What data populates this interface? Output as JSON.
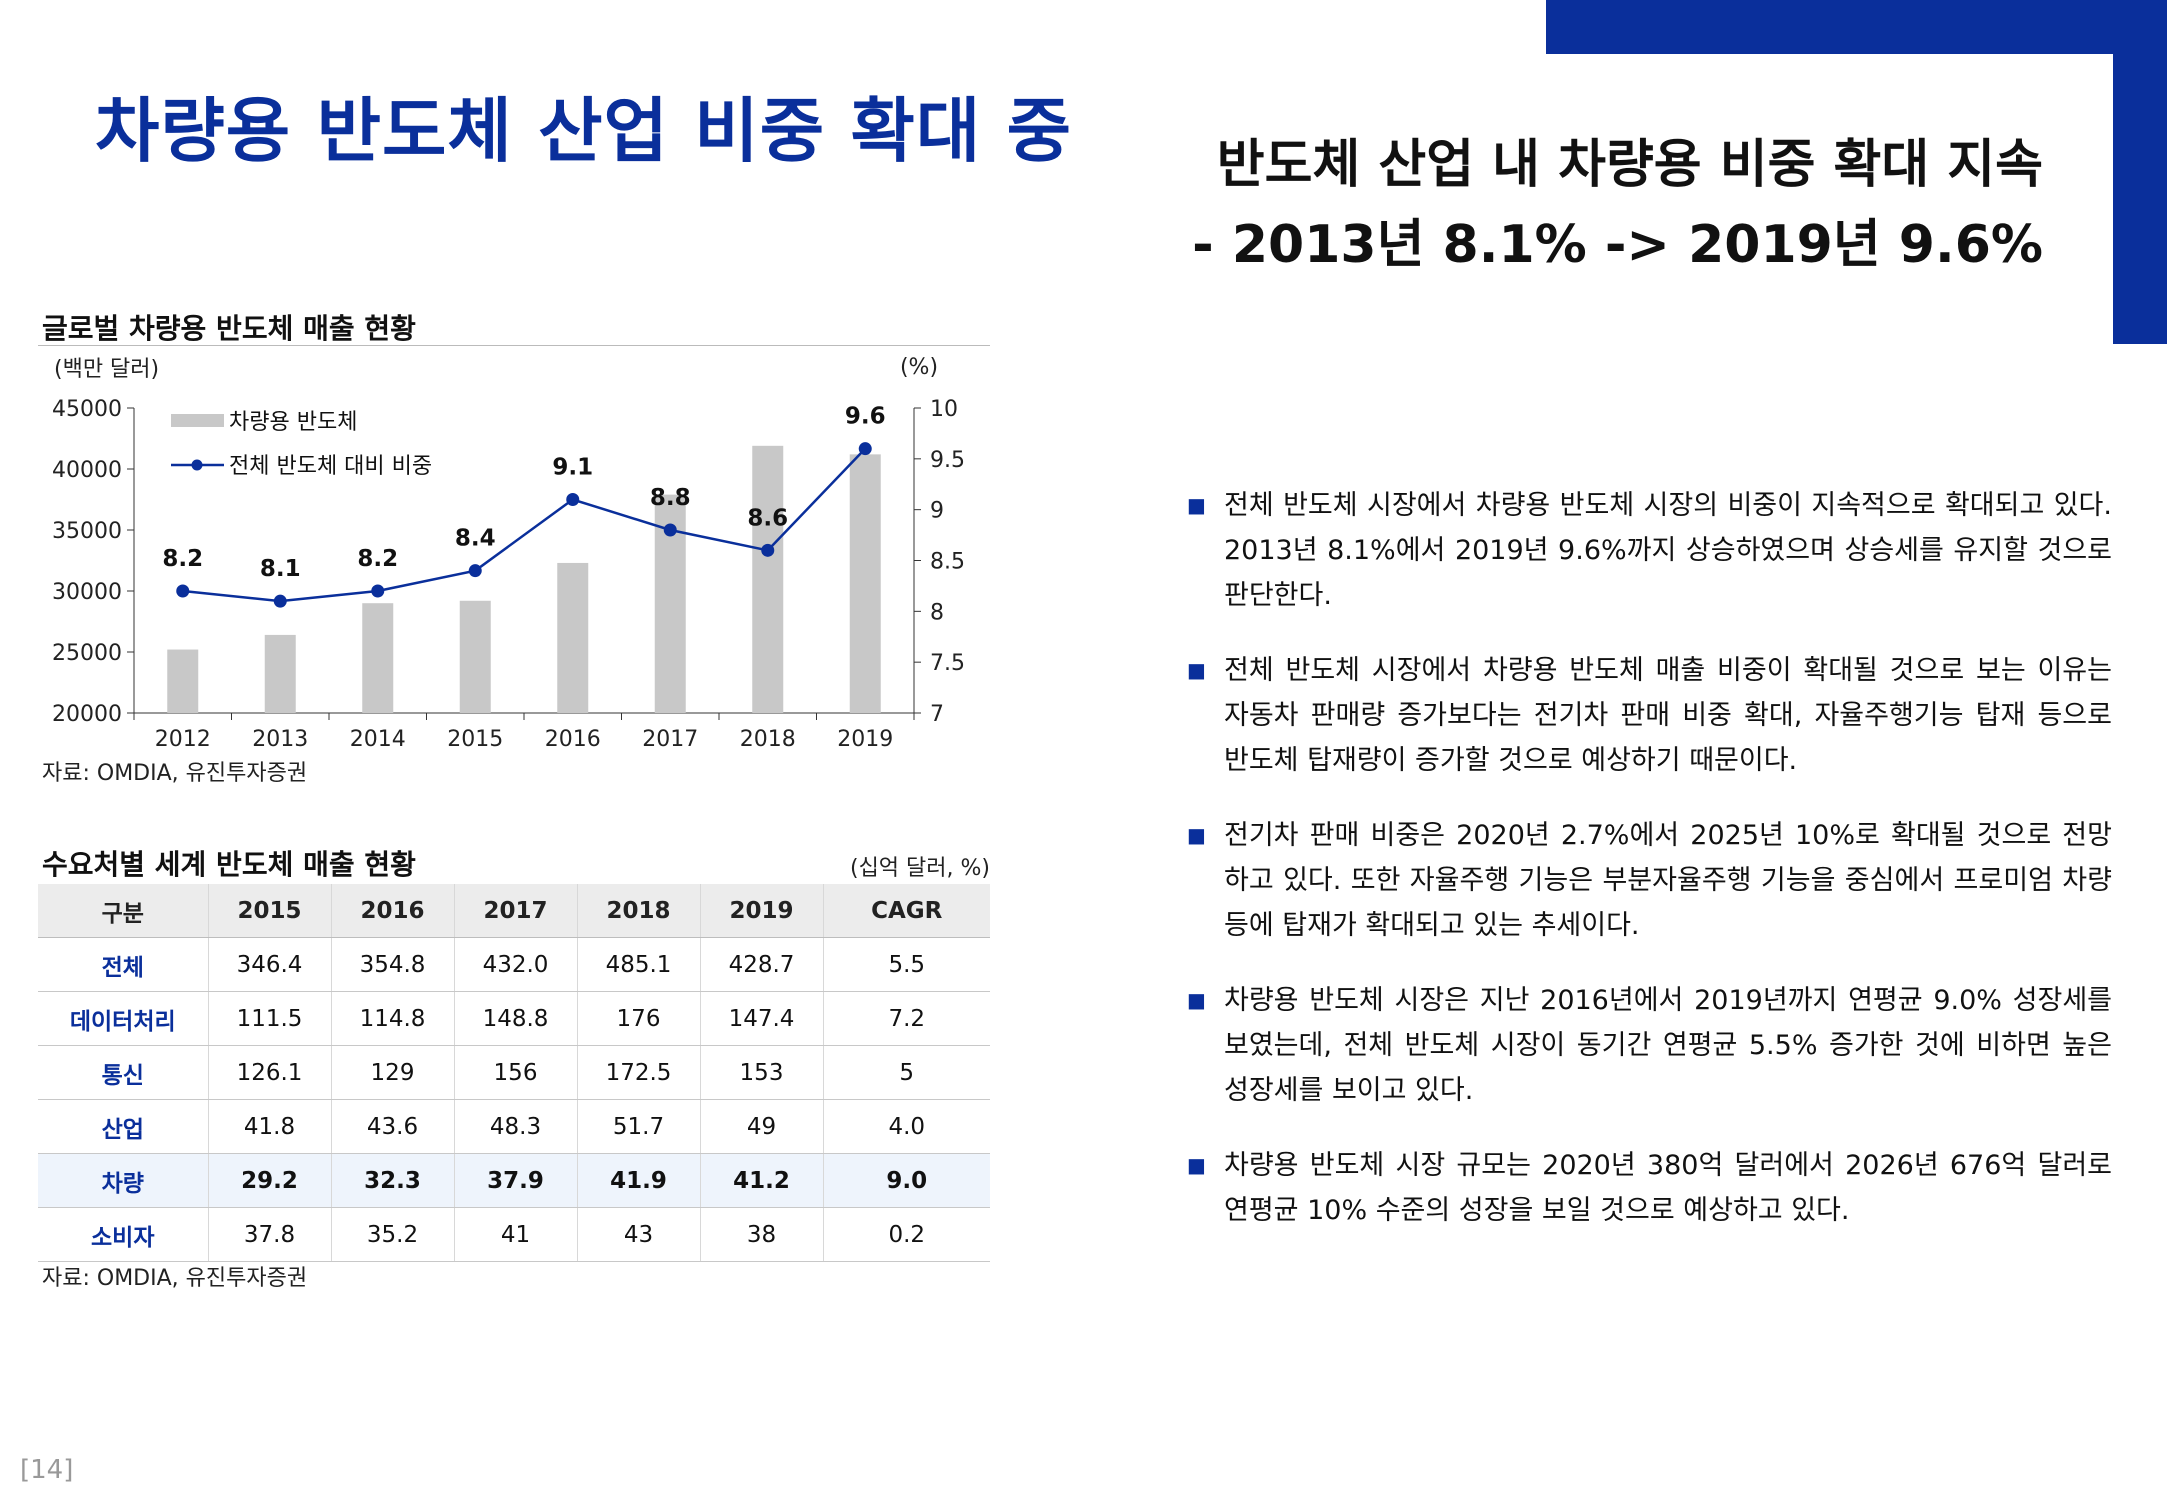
{
  "title": "차량용 반도체 산업 비중 확대 중",
  "headline": {
    "line1": "반도체 산업 내 차량용 비중 확대 지속",
    "line2": "- 2013년 8.1% -> 2019년 9.6%"
  },
  "chart_section": {
    "title": "글로벌 차량용 반도체 매출 현황",
    "source": "자료: OMDIA, 유진투자증권"
  },
  "chart_data": {
    "type": "bar",
    "categories": [
      "2012",
      "2013",
      "2014",
      "2015",
      "2016",
      "2017",
      "2018",
      "2019"
    ],
    "series": [
      {
        "name": "차량용 반도체",
        "type": "bar",
        "axis": "left",
        "values": [
          25200,
          26400,
          29000,
          29200,
          32300,
          37900,
          41900,
          41200
        ]
      },
      {
        "name": "전체 반도체 대비 비중",
        "type": "line",
        "axis": "right",
        "values": [
          8.2,
          8.1,
          8.2,
          8.4,
          9.1,
          8.8,
          8.6,
          9.6
        ]
      }
    ],
    "data_labels": [
      "8.2",
      "8.1",
      "8.2",
      "8.4",
      "9.1",
      "8.8",
      "8.6",
      "9.6"
    ],
    "ylabel_left": "(백만 달러)",
    "ylabel_right": "(%)",
    "ylim_left": [
      20000,
      45000
    ],
    "ylim_right": [
      7,
      10
    ],
    "yticks_left": [
      "45000",
      "40000",
      "35000",
      "30000",
      "25000",
      "20000"
    ],
    "yticks_right": [
      "10",
      "9.5",
      "9",
      "8.5",
      "8",
      "7.5",
      "7"
    ],
    "legend_position": "top-left",
    "colors": {
      "bar": "#c8c8c8",
      "line": "#0a2f9b"
    }
  },
  "table_section": {
    "title": "수요처별 세계 반도체 매출 현황",
    "unit": "(십억 달러, %)",
    "source": "자료: OMDIA, 유진투자증권",
    "headers": [
      "구분",
      "2015",
      "2016",
      "2017",
      "2018",
      "2019",
      "CAGR"
    ],
    "rows": [
      {
        "label": "전체",
        "values": [
          "346.4",
          "354.8",
          "432.0",
          "485.1",
          "428.7",
          "5.5"
        ]
      },
      {
        "label": "데이터처리",
        "values": [
          "111.5",
          "114.8",
          "148.8",
          "176",
          "147.4",
          "7.2"
        ]
      },
      {
        "label": "통신",
        "values": [
          "126.1",
          "129",
          "156",
          "172.5",
          "153",
          "5"
        ]
      },
      {
        "label": "산업",
        "values": [
          "41.8",
          "43.6",
          "48.3",
          "51.7",
          "49",
          "4.0"
        ]
      },
      {
        "label": "차량",
        "values": [
          "29.2",
          "32.3",
          "37.9",
          "41.9",
          "41.2",
          "9.0"
        ],
        "highlight": true
      },
      {
        "label": "소비자",
        "values": [
          "37.8",
          "35.2",
          "41",
          "43",
          "38",
          "0.2"
        ]
      }
    ]
  },
  "bullet_marker": "■",
  "bullets": [
    "전체 반도체 시장에서 차량용 반도체 시장의 비중이 지속적으로 확대되고 있다. 2013년 8.1%에서 2019년 9.6%까지 상승하였으며 상승세를 유지할 것으로 판단한다.",
    "전체 반도체 시장에서 차량용 반도체 매출 비중이 확대될 것으로 보는 이유는 자동차 판매량 증가보다는 전기차 판매 비중 확대, 자율주행기능 탑재 등으로 반도체 탑재량이 증가할 것으로 예상하기 때문이다.",
    "전기차 판매 비중은 2020년 2.7%에서 2025년 10%로 확대될 것으로 전망하고 있다. 또한 자율주행 기능은 부분자율주행 기능을 중심에서 프로미엄 차량 등에 탑재가 확대되고 있는 추세이다.",
    "차량용 반도체 시장은 지난 2016년에서 2019년까지 연평균 9.0% 성장세를 보였는데, 전체 반도체 시장이 동기간 연평균 5.5% 증가한 것에 비하면 높은 성장세를 보이고 있다.",
    "차량용 반도체 시장 규모는 2020년 380억 달러에서 2026년 676억 달러로 연평균 10% 수준의 성장을 보일 것으로 예상하고 있다."
  ],
  "page_number": "[14]"
}
